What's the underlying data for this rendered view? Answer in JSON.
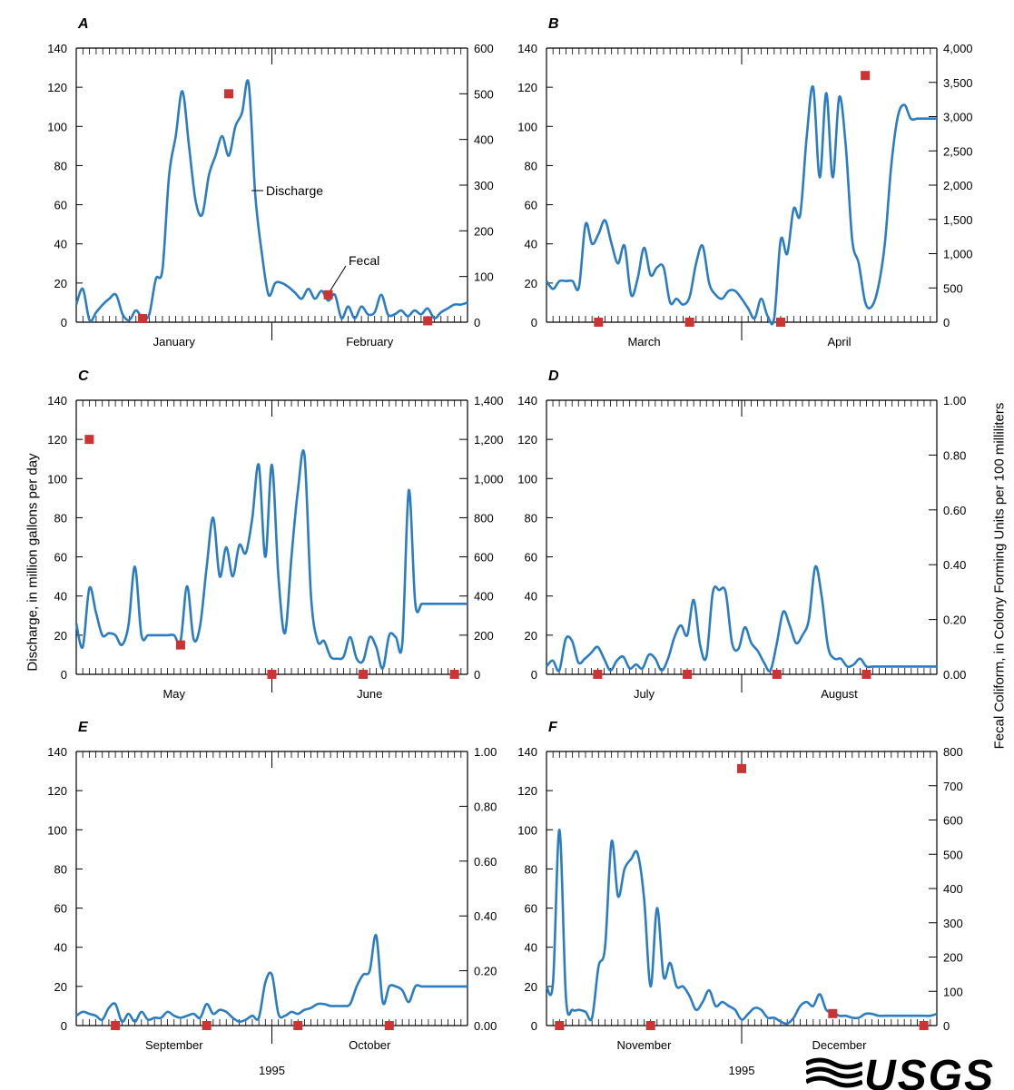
{
  "figure": {
    "left_axis_label": "Discharge, in million gallons per day",
    "right_axis_label": "Fecal Coliform, in Colony Forming Units per 100 milliliters",
    "logo_text": "USGS",
    "colors": {
      "discharge": "#2a7dc2",
      "fecal": "#cc3333",
      "axis": "#000000",
      "grid": "#555555"
    }
  },
  "chart_data": [
    {
      "panel": "A",
      "type": "line",
      "left_ticks": [
        0,
        20,
        40,
        60,
        80,
        100,
        120,
        140
      ],
      "ylim": [
        0,
        140
      ],
      "right_ticks": [
        0,
        100,
        200,
        300,
        400,
        500,
        600
      ],
      "right_tick_labels": [
        "0",
        "100",
        "200",
        "300",
        "400",
        "500",
        "600"
      ],
      "y2lim": [
        0,
        600
      ],
      "months": [
        "January",
        "February"
      ],
      "year_label": "",
      "n_days": 60,
      "annotations": [
        {
          "text": "Discharge"
        },
        {
          "text": "Fecal"
        }
      ],
      "series": [
        {
          "name": "Discharge",
          "x": [
            0,
            1,
            2,
            3,
            4,
            5,
            6,
            7,
            8,
            9,
            10,
            11,
            12,
            13,
            14,
            15,
            16,
            17,
            18,
            19,
            20,
            21,
            22,
            23,
            24,
            25,
            26,
            27,
            28,
            29,
            30,
            31,
            32,
            33,
            34,
            35,
            36,
            37,
            38,
            39,
            40,
            41,
            42,
            43,
            44,
            45,
            46,
            47,
            48,
            49,
            50,
            51,
            52,
            53,
            54,
            55,
            56,
            57,
            58,
            59
          ],
          "y": [
            9,
            17,
            1,
            5,
            9,
            12,
            14,
            4,
            1,
            6,
            2,
            4,
            22,
            27,
            75,
            95,
            118,
            90,
            62,
            55,
            75,
            85,
            95,
            85,
            100,
            107,
            122,
            65,
            35,
            14,
            20,
            20,
            18,
            15,
            12,
            17,
            12,
            16,
            11,
            14,
            2,
            8,
            2,
            8,
            4,
            5,
            14,
            4,
            4,
            6,
            3,
            6,
            4,
            7,
            2,
            5,
            7,
            9,
            9,
            10
          ]
        },
        {
          "name": "Fecal",
          "type": "scatter",
          "x": [
            10,
            23,
            38,
            53
          ],
          "y": [
            8,
            500,
            60,
            3
          ]
        }
      ]
    },
    {
      "panel": "B",
      "type": "line",
      "left_ticks": [
        0,
        20,
        40,
        60,
        80,
        100,
        120,
        140
      ],
      "ylim": [
        0,
        140
      ],
      "right_ticks": [
        0,
        500,
        1000,
        1500,
        2000,
        2500,
        3000,
        3500,
        4000
      ],
      "right_tick_labels": [
        "0",
        "500",
        "1,000",
        "1,500",
        "2,000",
        "2,500",
        "3,000",
        "3,500",
        "4,000"
      ],
      "y2lim": [
        0,
        4000
      ],
      "months": [
        "March",
        "April"
      ],
      "year_label": "",
      "n_days": 61,
      "annotations": [],
      "series": [
        {
          "name": "Discharge",
          "x": [
            0,
            1,
            2,
            3,
            4,
            5,
            6,
            7,
            8,
            9,
            10,
            11,
            12,
            13,
            14,
            15,
            16,
            17,
            18,
            19,
            20,
            21,
            22,
            23,
            24,
            25,
            26,
            27,
            28,
            29,
            30,
            31,
            32,
            33,
            34,
            35,
            36,
            37,
            38,
            39,
            40,
            41,
            42,
            43,
            44,
            45,
            46,
            47,
            48,
            49,
            50,
            51,
            52,
            53,
            54,
            55,
            56,
            57,
            58,
            59,
            60
          ],
          "y": [
            21,
            17,
            21,
            21,
            21,
            18,
            50,
            40,
            45,
            52,
            40,
            30,
            39,
            14,
            22,
            38,
            24,
            28,
            28,
            10,
            12,
            9,
            13,
            30,
            39,
            20,
            14,
            12,
            16,
            16,
            12,
            7,
            2,
            12,
            3,
            2,
            42,
            35,
            58,
            55,
            95,
            120,
            74,
            117,
            74,
            115,
            90,
            42,
            30,
            10,
            8,
            18,
            40,
            80,
            105,
            111,
            104,
            104,
            104,
            104,
            104
          ]
        },
        {
          "name": "Fecal",
          "type": "scatter",
          "x": [
            8,
            22,
            36,
            49
          ],
          "y": [
            0,
            0,
            0,
            3600
          ]
        }
      ]
    },
    {
      "panel": "C",
      "type": "line",
      "left_ticks": [
        0,
        20,
        40,
        60,
        80,
        100,
        120,
        140
      ],
      "ylim": [
        0,
        140
      ],
      "right_ticks": [
        0,
        200,
        400,
        600,
        800,
        1000,
        1200,
        1400
      ],
      "right_tick_labels": [
        "0",
        "200",
        "400",
        "600",
        "800",
        "1,000",
        "1,200",
        "1,400"
      ],
      "y2lim": [
        0,
        1400
      ],
      "months": [
        "May",
        "June"
      ],
      "year_label": "",
      "n_days": 61,
      "annotations": [],
      "series": [
        {
          "name": "Discharge",
          "x": [
            0,
            1,
            2,
            3,
            4,
            5,
            6,
            7,
            8,
            9,
            10,
            11,
            12,
            13,
            14,
            15,
            16,
            17,
            18,
            19,
            20,
            21,
            22,
            23,
            24,
            25,
            26,
            27,
            28,
            29,
            30,
            31,
            32,
            33,
            34,
            35,
            36,
            37,
            38,
            39,
            40,
            41,
            42,
            43,
            44,
            45,
            46,
            47,
            48,
            49,
            50,
            51,
            52,
            53,
            54,
            55,
            56,
            57,
            58,
            59,
            60
          ],
          "y": [
            26,
            14,
            44,
            32,
            20,
            21,
            20,
            15,
            25,
            55,
            20,
            20,
            20,
            20,
            20,
            20,
            17,
            45,
            18,
            25,
            55,
            80,
            50,
            65,
            50,
            66,
            62,
            80,
            107,
            60,
            107,
            50,
            21,
            60,
            94,
            112,
            40,
            17,
            17,
            9,
            8,
            9,
            19,
            8,
            7,
            19,
            14,
            3,
            20,
            19,
            16,
            94,
            36,
            36,
            36,
            36,
            36,
            36,
            36,
            36,
            36
          ]
        },
        {
          "name": "Fecal",
          "type": "scatter",
          "x": [
            2,
            16,
            30,
            44,
            58
          ],
          "y": [
            1200,
            150,
            0,
            0,
            0
          ]
        }
      ]
    },
    {
      "panel": "D",
      "type": "line",
      "left_ticks": [
        0,
        20,
        40,
        60,
        80,
        100,
        120,
        140
      ],
      "ylim": [
        0,
        140
      ],
      "right_ticks": [
        0,
        0.2,
        0.4,
        0.6,
        0.8,
        1.0
      ],
      "right_tick_labels": [
        "0.00",
        "0.20",
        "0.40",
        "0.60",
        "0.80",
        "1.00"
      ],
      "y2lim": [
        0,
        1.0
      ],
      "months": [
        "July",
        "August"
      ],
      "year_label": "",
      "n_days": 62,
      "annotations": [],
      "series": [
        {
          "name": "Discharge",
          "x": [
            0,
            1,
            2,
            3,
            4,
            5,
            6,
            7,
            8,
            9,
            10,
            11,
            12,
            13,
            14,
            15,
            16,
            17,
            18,
            19,
            20,
            21,
            22,
            23,
            24,
            25,
            26,
            27,
            28,
            29,
            30,
            31,
            32,
            33,
            34,
            35,
            36,
            37,
            38,
            39,
            40,
            41,
            42,
            43,
            44,
            45,
            46,
            47,
            48,
            49,
            50,
            51,
            52,
            53,
            54,
            55,
            56,
            57,
            58,
            59,
            60,
            61
          ],
          "y": [
            4,
            7,
            2,
            18,
            17,
            6,
            8,
            11,
            14,
            8,
            2,
            7,
            9,
            3,
            5,
            3,
            10,
            8,
            2,
            8,
            19,
            25,
            20,
            38,
            15,
            9,
            42,
            43,
            42,
            16,
            13,
            24,
            16,
            12,
            6,
            2,
            16,
            32,
            25,
            16,
            20,
            28,
            55,
            40,
            14,
            8,
            8,
            4,
            5,
            8,
            4,
            4,
            4,
            4,
            4,
            4,
            4,
            4,
            4,
            4,
            4,
            4
          ]
        },
        {
          "name": "Fecal",
          "type": "scatter",
          "x": [
            8,
            22,
            36,
            50
          ],
          "y": [
            0,
            0,
            0,
            0
          ]
        }
      ]
    },
    {
      "panel": "E",
      "type": "line",
      "left_ticks": [
        0,
        20,
        40,
        60,
        80,
        100,
        120,
        140
      ],
      "ylim": [
        0,
        140
      ],
      "right_ticks": [
        0,
        0.2,
        0.4,
        0.6,
        0.8,
        1.0
      ],
      "right_tick_labels": [
        "0.00",
        "0.20",
        "0.40",
        "0.60",
        "0.80",
        "1.00"
      ],
      "y2lim": [
        0,
        1.0
      ],
      "months": [
        "September",
        "October"
      ],
      "year_label": "1995",
      "n_days": 61,
      "annotations": [],
      "series": [
        {
          "name": "Discharge",
          "x": [
            0,
            1,
            2,
            3,
            4,
            5,
            6,
            7,
            8,
            9,
            10,
            11,
            12,
            13,
            14,
            15,
            16,
            17,
            18,
            19,
            20,
            21,
            22,
            23,
            24,
            25,
            26,
            27,
            28,
            29,
            30,
            31,
            32,
            33,
            34,
            35,
            36,
            37,
            38,
            39,
            40,
            41,
            42,
            43,
            44,
            45,
            46,
            47,
            48,
            49,
            50,
            51,
            52,
            53,
            54,
            55,
            56,
            57,
            58,
            59,
            60
          ],
          "y": [
            5,
            7,
            6,
            5,
            3,
            9,
            11,
            2,
            6,
            2,
            7,
            3,
            4,
            4,
            7,
            5,
            4,
            5,
            6,
            4,
            11,
            6,
            8,
            7,
            4,
            2,
            3,
            5,
            4,
            22,
            26,
            6,
            5,
            7,
            6,
            8,
            9,
            11,
            11,
            10,
            10,
            10,
            11,
            20,
            26,
            28,
            46,
            12,
            20,
            20,
            18,
            12,
            20,
            20,
            20,
            20,
            20,
            20,
            20,
            20,
            20
          ]
        },
        {
          "name": "Fecal",
          "type": "scatter",
          "x": [
            6,
            20,
            34,
            48
          ],
          "y": [
            0,
            0,
            0,
            0
          ]
        }
      ]
    },
    {
      "panel": "F",
      "type": "line",
      "left_ticks": [
        0,
        20,
        40,
        60,
        80,
        100,
        120,
        140
      ],
      "ylim": [
        0,
        140
      ],
      "right_ticks": [
        0,
        100,
        200,
        300,
        400,
        500,
        600,
        700,
        800
      ],
      "right_tick_labels": [
        "0",
        "100",
        "200",
        "300",
        "400",
        "500",
        "600",
        "700",
        "800"
      ],
      "y2lim": [
        0,
        800
      ],
      "months": [
        "November",
        "December"
      ],
      "year_label": "1995",
      "n_days": 61,
      "annotations": [],
      "series": [
        {
          "name": "Discharge",
          "x": [
            0,
            1,
            2,
            3,
            4,
            5,
            6,
            7,
            8,
            9,
            10,
            11,
            12,
            13,
            14,
            15,
            16,
            17,
            18,
            19,
            20,
            21,
            22,
            23,
            24,
            25,
            26,
            27,
            28,
            29,
            30,
            31,
            32,
            33,
            34,
            35,
            36,
            37,
            38,
            39,
            40,
            41,
            42,
            43,
            44,
            45,
            46,
            47,
            48,
            49,
            50,
            51,
            52,
            53,
            54,
            55,
            56,
            57,
            58,
            59,
            60
          ],
          "y": [
            20,
            22,
            100,
            14,
            8,
            8,
            7,
            4,
            30,
            40,
            94,
            66,
            80,
            85,
            88,
            65,
            20,
            60,
            25,
            32,
            20,
            20,
            15,
            8,
            12,
            18,
            10,
            12,
            10,
            8,
            3,
            6,
            9,
            8,
            4,
            4,
            2,
            1,
            4,
            10,
            12,
            10,
            16,
            8,
            7,
            5,
            5,
            4,
            4,
            6,
            6,
            5,
            5,
            5,
            5,
            5,
            5,
            5,
            5,
            5,
            6
          ]
        },
        {
          "name": "Fecal",
          "type": "scatter",
          "x": [
            2,
            16,
            30,
            44,
            58
          ],
          "y": [
            0,
            0,
            750,
            35,
            0
          ]
        }
      ]
    }
  ]
}
